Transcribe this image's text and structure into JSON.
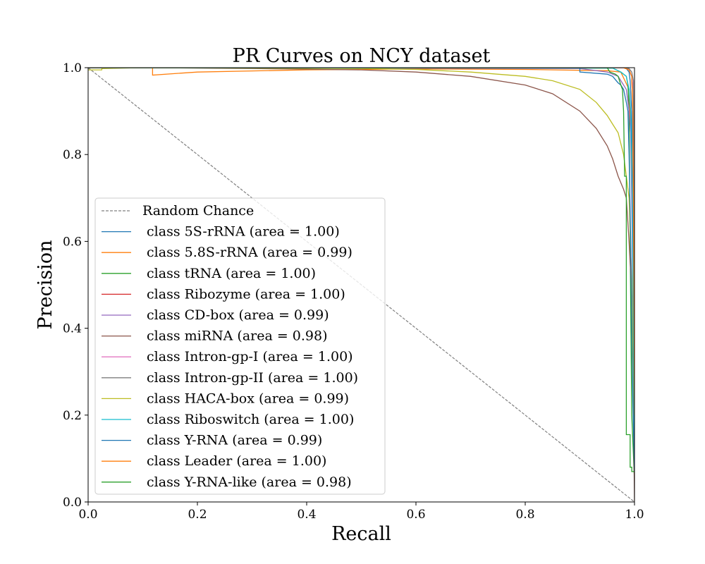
{
  "chart_data": {
    "type": "line",
    "title": "PR Curves on NCY dataset",
    "xlabel": "Recall",
    "ylabel": "Precision",
    "xlim": [
      0.0,
      1.0
    ],
    "ylim": [
      0.0,
      1.0
    ],
    "xticks": [
      "0.0",
      "0.2",
      "0.4",
      "0.6",
      "0.8",
      "1.0"
    ],
    "yticks": [
      "0.0",
      "0.2",
      "0.4",
      "0.6",
      "0.8",
      "1.0"
    ],
    "grid": false,
    "legend_position": "lower-left",
    "reference": {
      "name": "Random Chance",
      "color": "#808080",
      "x": [
        0.0,
        1.0
      ],
      "y": [
        1.0,
        0.0
      ]
    },
    "series": [
      {
        "name": " class 5S-rRNA (area = 1.00)",
        "color": "#1f77b4",
        "x": [
          0.0,
          0.98,
          0.985,
          0.99,
          0.992,
          0.995,
          0.997,
          1.0
        ],
        "y": [
          1.0,
          1.0,
          0.998,
          0.99,
          0.97,
          0.9,
          0.6,
          0.05
        ]
      },
      {
        "name": " class 5.8S-rRNA (area = 0.99)",
        "color": "#ff7f0e",
        "x": [
          0.0,
          0.118,
          0.118,
          0.2,
          0.4,
          0.6,
          0.8,
          0.95,
          0.975,
          0.99,
          0.995,
          0.998,
          1.0
        ],
        "y": [
          1.0,
          1.0,
          0.983,
          0.99,
          0.995,
          0.997,
          0.996,
          0.993,
          0.99,
          0.95,
          0.8,
          0.3,
          0.05
        ]
      },
      {
        "name": " class tRNA (area = 1.00)",
        "color": "#2ca02c",
        "x": [
          0.0,
          0.96,
          0.975,
          0.985,
          0.988,
          0.99,
          0.992,
          0.995,
          1.0
        ],
        "y": [
          1.0,
          0.999,
          0.99,
          0.98,
          0.96,
          0.9,
          0.6,
          0.2,
          0.05
        ]
      },
      {
        "name": " class Ribozyme (area = 1.00)",
        "color": "#d62728",
        "x": [
          0.0,
          0.98,
          0.99,
          0.995,
          0.997,
          1.0
        ],
        "y": [
          1.0,
          1.0,
          0.995,
          0.98,
          0.9,
          0.3
        ]
      },
      {
        "name": " class CD-box (area = 0.99)",
        "color": "#9467bd",
        "x": [
          0.0,
          0.9,
          0.95,
          0.97,
          0.98,
          0.985,
          0.99,
          0.993,
          0.996,
          1.0
        ],
        "y": [
          1.0,
          0.998,
          0.99,
          0.98,
          0.96,
          0.95,
          0.9,
          0.85,
          0.6,
          0.1
        ]
      },
      {
        "name": " class miRNA (area = 0.98)",
        "color": "#8c564b",
        "x": [
          0.0,
          0.1,
          0.3,
          0.5,
          0.6,
          0.7,
          0.8,
          0.85,
          0.9,
          0.93,
          0.95,
          0.96,
          0.97,
          0.98,
          0.985,
          0.99,
          0.994,
          0.997,
          1.0
        ],
        "y": [
          1.0,
          1.0,
          0.998,
          0.995,
          0.99,
          0.98,
          0.96,
          0.94,
          0.9,
          0.86,
          0.82,
          0.79,
          0.75,
          0.72,
          0.7,
          0.6,
          0.5,
          0.35,
          0.0
        ]
      },
      {
        "name": " class Intron-gp-I (area = 1.00)",
        "color": "#e377c2",
        "x": [
          0.0,
          0.985,
          0.99,
          0.995,
          0.998,
          1.0
        ],
        "y": [
          1.0,
          1.0,
          0.995,
          0.98,
          0.95,
          0.5
        ]
      },
      {
        "name": " class Intron-gp-II (area = 1.00)",
        "color": "#7f7f7f",
        "x": [
          0.0,
          0.98,
          0.99,
          0.995,
          0.998,
          1.0
        ],
        "y": [
          1.0,
          1.0,
          0.998,
          0.99,
          0.97,
          0.6
        ]
      },
      {
        "name": " class HACA-box (area = 0.99)",
        "color": "#bcbd22",
        "x": [
          0.0,
          0.025,
          0.025,
          0.1,
          0.3,
          0.5,
          0.6,
          0.7,
          0.8,
          0.85,
          0.9,
          0.93,
          0.95,
          0.96,
          0.97,
          0.98,
          0.99,
          0.995,
          1.0
        ],
        "y": [
          0.995,
          0.995,
          0.998,
          1.0,
          0.999,
          0.998,
          0.996,
          0.99,
          0.98,
          0.97,
          0.95,
          0.92,
          0.89,
          0.87,
          0.85,
          0.8,
          0.7,
          0.5,
          0.1
        ]
      },
      {
        "name": " class Riboswitch (area = 1.00)",
        "color": "#17becf",
        "x": [
          0.0,
          0.96,
          0.975,
          0.985,
          0.99,
          0.993,
          0.996,
          1.0
        ],
        "y": [
          1.0,
          0.999,
          0.99,
          0.98,
          0.95,
          0.9,
          0.7,
          0.1
        ]
      },
      {
        "name": " class Y-RNA (area = 0.99)",
        "color": "#1f77b4",
        "x": [
          0.0,
          0.9,
          0.9,
          0.95,
          0.96,
          0.97,
          0.975,
          0.98,
          0.985,
          0.988,
          0.99,
          0.993,
          0.995,
          0.997,
          1.0
        ],
        "y": [
          1.0,
          1.0,
          0.99,
          0.985,
          0.98,
          0.965,
          0.96,
          0.95,
          0.92,
          0.9,
          0.8,
          0.6,
          0.4,
          0.23,
          0.07
        ]
      },
      {
        "name": " class Leader (area = 1.00)",
        "color": "#ff7f0e",
        "x": [
          0.0,
          0.98,
          0.99,
          0.995,
          0.997,
          0.999,
          1.0
        ],
        "y": [
          1.0,
          1.0,
          0.995,
          0.98,
          0.9,
          0.5,
          0.2
        ]
      },
      {
        "name": " class Y-RNA-like (area = 0.98)",
        "color": "#2ca02c",
        "x": [
          0.0,
          0.95,
          0.955,
          0.965,
          0.97,
          0.975,
          0.978,
          0.98,
          0.982,
          0.985,
          0.985,
          0.992,
          0.992,
          0.995,
          0.995,
          1.0
        ],
        "y": [
          1.0,
          1.0,
          0.99,
          0.985,
          0.98,
          0.96,
          0.95,
          0.9,
          0.75,
          0.75,
          0.155,
          0.155,
          0.08,
          0.08,
          0.07,
          0.07
        ]
      }
    ]
  }
}
